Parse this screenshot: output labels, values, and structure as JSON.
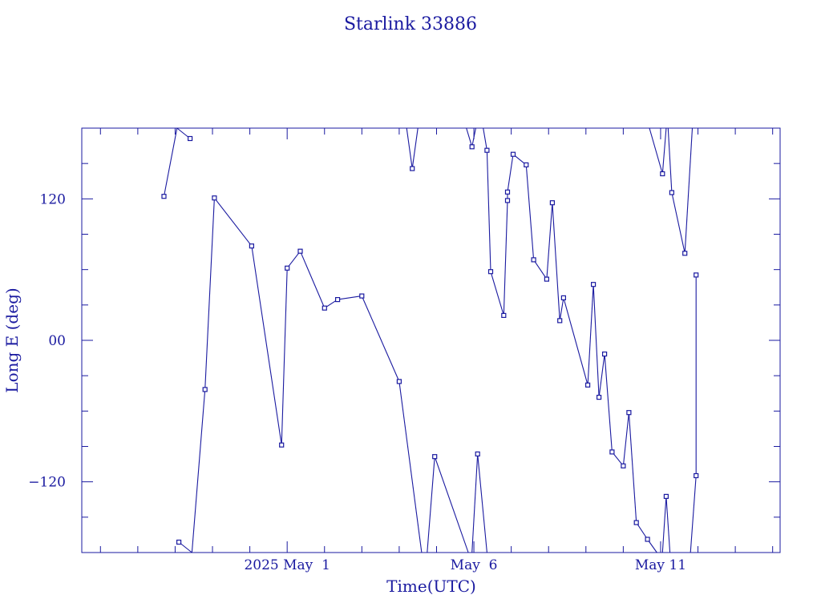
{
  "chart_data": {
    "type": "line",
    "title": "Starlink 33886",
    "xlabel": "Time(UTC)",
    "ylabel": "Long E (deg)",
    "x_tick_labels": [
      {
        "day": 1,
        "label": "2025 May  1"
      },
      {
        "day": 6,
        "label": "May  6"
      },
      {
        "day": 11,
        "label": "May 11"
      }
    ],
    "y_tick_labels": [
      {
        "value": 120,
        "label": "120"
      },
      {
        "value": 0,
        "label": "00"
      },
      {
        "value": -120,
        "label": "−120"
      }
    ],
    "x_unit": "days from 2025 May 1 00:00 UTC",
    "xlim": [
      -4.5,
      14.2
    ],
    "ylim": [
      -180,
      180
    ],
    "colors": {
      "line": "#1a1aa0",
      "axis": "#1a1aa0",
      "text": "#1a1aa0"
    },
    "grid": false,
    "segments": [
      [
        [
          -2.3,
          122.1
        ],
        [
          -1.95,
          180
        ]
      ],
      [
        [
          -1.95,
          180
        ],
        [
          -1.6,
          171.2
        ]
      ],
      [
        [
          -1.9,
          -171.2
        ],
        [
          -1.55,
          -180
        ]
      ],
      [
        [
          -1.55,
          -180
        ],
        [
          -1.2,
          -41.7
        ]
      ],
      [
        [
          -1.2,
          -41.7
        ],
        [
          -0.95,
          120.8
        ]
      ],
      [
        [
          -0.95,
          120.8
        ],
        [
          0.05,
          80.0
        ]
      ],
      [
        [
          0.05,
          80.0
        ],
        [
          0.85,
          -88.8
        ]
      ],
      [
        [
          0.85,
          -88.8
        ],
        [
          1.0,
          61.3
        ]
      ],
      [
        [
          1.0,
          61.3
        ],
        [
          1.35,
          75.6
        ]
      ],
      [
        [
          1.35,
          75.6
        ],
        [
          2.0,
          27.4
        ]
      ],
      [
        [
          2.0,
          27.4
        ],
        [
          2.35,
          34.6
        ]
      ],
      [
        [
          2.35,
          34.6
        ],
        [
          3.0,
          37.6
        ]
      ],
      [
        [
          3.0,
          37.6
        ],
        [
          4.0,
          -34.9
        ]
      ],
      [
        [
          4.0,
          -34.9
        ],
        [
          4.6,
          -180
        ]
      ],
      [
        [
          4.2,
          180
        ],
        [
          4.35,
          145.7
        ]
      ],
      [
        [
          4.35,
          145.7
        ],
        [
          4.5,
          180
        ]
      ],
      [
        [
          4.75,
          -180
        ],
        [
          4.95,
          -98.6
        ]
      ],
      [
        [
          4.95,
          -98.6
        ],
        [
          5.85,
          -180
        ]
      ],
      [
        [
          5.8,
          180
        ],
        [
          5.95,
          164.2
        ]
      ],
      [
        [
          5.95,
          164.2
        ],
        [
          6.05,
          180
        ]
      ],
      [
        [
          5.95,
          -180
        ],
        [
          6.1,
          -96.4
        ]
      ],
      [
        [
          6.1,
          -96.4
        ],
        [
          6.35,
          -180
        ]
      ],
      [
        [
          6.25,
          180
        ],
        [
          6.35,
          161.2
        ]
      ],
      [
        [
          6.35,
          161.2
        ],
        [
          6.45,
          58.3
        ]
      ],
      [
        [
          6.45,
          58.3
        ],
        [
          6.8,
          21.1
        ]
      ],
      [
        [
          6.8,
          21.1
        ],
        [
          6.9,
          118.6
        ]
      ],
      [
        [
          6.9,
          118.6
        ],
        [
          6.9,
          125.8
        ]
      ],
      [
        [
          6.9,
          125.8
        ],
        [
          7.05,
          157.8
        ]
      ],
      [
        [
          7.05,
          157.8
        ],
        [
          7.4,
          148.8
        ]
      ],
      [
        [
          7.4,
          148.8
        ],
        [
          7.6,
          68.3
        ]
      ],
      [
        [
          7.6,
          68.3
        ],
        [
          7.95,
          51.9
        ]
      ],
      [
        [
          7.95,
          51.9
        ],
        [
          8.1,
          116.7
        ]
      ],
      [
        [
          8.1,
          116.7
        ],
        [
          8.3,
          16.7
        ]
      ],
      [
        [
          8.3,
          16.7
        ],
        [
          8.4,
          36.1
        ]
      ],
      [
        [
          8.4,
          36.1
        ],
        [
          9.05,
          -37.9
        ]
      ],
      [
        [
          9.05,
          -37.9
        ],
        [
          9.2,
          47.4
        ]
      ],
      [
        [
          9.2,
          47.4
        ],
        [
          9.35,
          -48.3
        ]
      ],
      [
        [
          9.35,
          -48.3
        ],
        [
          9.5,
          -11.6
        ]
      ],
      [
        [
          9.5,
          -11.6
        ],
        [
          9.7,
          -94.7
        ]
      ],
      [
        [
          9.7,
          -94.7
        ],
        [
          10.0,
          -106.5
        ]
      ],
      [
        [
          10.0,
          -106.5
        ],
        [
          10.15,
          -61.3
        ]
      ],
      [
        [
          10.15,
          -61.3
        ],
        [
          10.35,
          -154.6
        ]
      ],
      [
        [
          10.35,
          -154.6
        ],
        [
          10.65,
          -168.8
        ]
      ],
      [
        [
          10.65,
          -168.8
        ],
        [
          10.9,
          -180
        ]
      ],
      [
        [
          10.7,
          180
        ],
        [
          11.05,
          141.3
        ]
      ],
      [
        [
          11.05,
          141.3
        ],
        [
          11.15,
          180
        ]
      ],
      [
        [
          11.05,
          -180
        ],
        [
          11.15,
          -132.4
        ]
      ],
      [
        [
          11.15,
          -132.4
        ],
        [
          11.25,
          -180
        ]
      ],
      [
        [
          11.2,
          180
        ],
        [
          11.3,
          125.3
        ]
      ],
      [
        [
          11.3,
          125.3
        ],
        [
          11.65,
          73.8
        ]
      ],
      [
        [
          11.65,
          73.8
        ],
        [
          11.85,
          180
        ]
      ],
      [
        [
          11.8,
          -180
        ],
        [
          11.95,
          -114.8
        ]
      ],
      [
        [
          11.95,
          -114.8
        ],
        [
          11.95,
          55.4
        ]
      ]
    ],
    "markers": [
      [
        -2.3,
        122.1
      ],
      [
        -1.9,
        -171.2
      ],
      [
        -1.6,
        171.2
      ],
      [
        -1.2,
        -41.7
      ],
      [
        -0.95,
        120.8
      ],
      [
        0.05,
        80.0
      ],
      [
        0.85,
        -88.8
      ],
      [
        1.0,
        61.3
      ],
      [
        1.35,
        75.6
      ],
      [
        2.0,
        27.4
      ],
      [
        2.35,
        34.6
      ],
      [
        3.0,
        37.6
      ],
      [
        4.0,
        -34.9
      ],
      [
        4.35,
        145.7
      ],
      [
        4.95,
        -98.6
      ],
      [
        5.95,
        164.2
      ],
      [
        6.1,
        -96.4
      ],
      [
        6.35,
        161.2
      ],
      [
        6.45,
        58.3
      ],
      [
        6.8,
        21.1
      ],
      [
        6.9,
        118.6
      ],
      [
        6.9,
        125.8
      ],
      [
        7.05,
        157.8
      ],
      [
        7.4,
        148.8
      ],
      [
        7.6,
        68.3
      ],
      [
        7.95,
        51.9
      ],
      [
        8.1,
        116.7
      ],
      [
        8.3,
        16.7
      ],
      [
        8.4,
        36.1
      ],
      [
        9.05,
        -37.9
      ],
      [
        9.2,
        47.4
      ],
      [
        9.35,
        -48.3
      ],
      [
        9.5,
        -11.6
      ],
      [
        9.7,
        -94.7
      ],
      [
        10.0,
        -106.5
      ],
      [
        10.15,
        -61.3
      ],
      [
        10.35,
        -154.6
      ],
      [
        10.65,
        -168.8
      ],
      [
        11.05,
        141.3
      ],
      [
        11.15,
        -132.4
      ],
      [
        11.3,
        125.3
      ],
      [
        11.65,
        73.8
      ],
      [
        11.95,
        -114.8
      ],
      [
        11.95,
        55.4
      ]
    ]
  }
}
